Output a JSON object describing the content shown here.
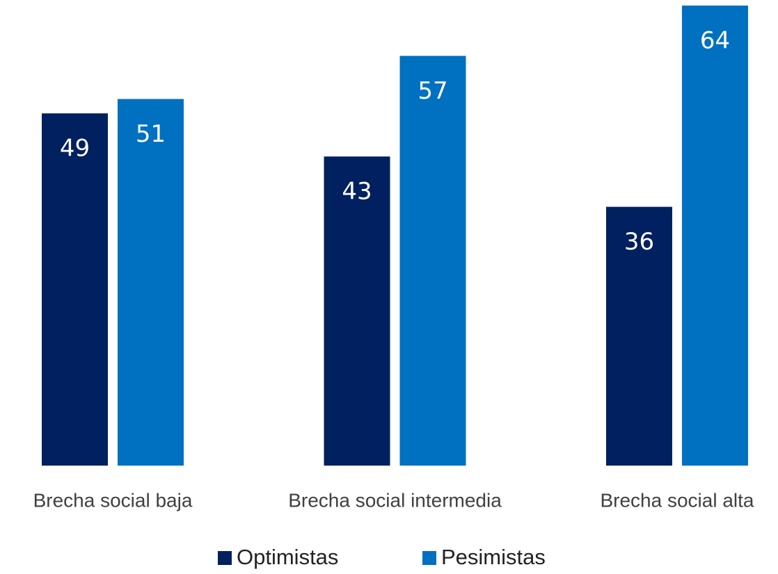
{
  "chart_data": {
    "type": "bar",
    "categories": [
      "Brecha social baja",
      "Brecha social intermedia",
      "Brecha social alta"
    ],
    "series": [
      {
        "name": "Optimistas",
        "color": "#002060",
        "values": [
          49,
          43,
          36
        ]
      },
      {
        "name": "Pesimistas",
        "color": "#0070c0",
        "values": [
          51,
          57,
          64
        ]
      }
    ],
    "ylim": [
      0,
      64
    ]
  }
}
